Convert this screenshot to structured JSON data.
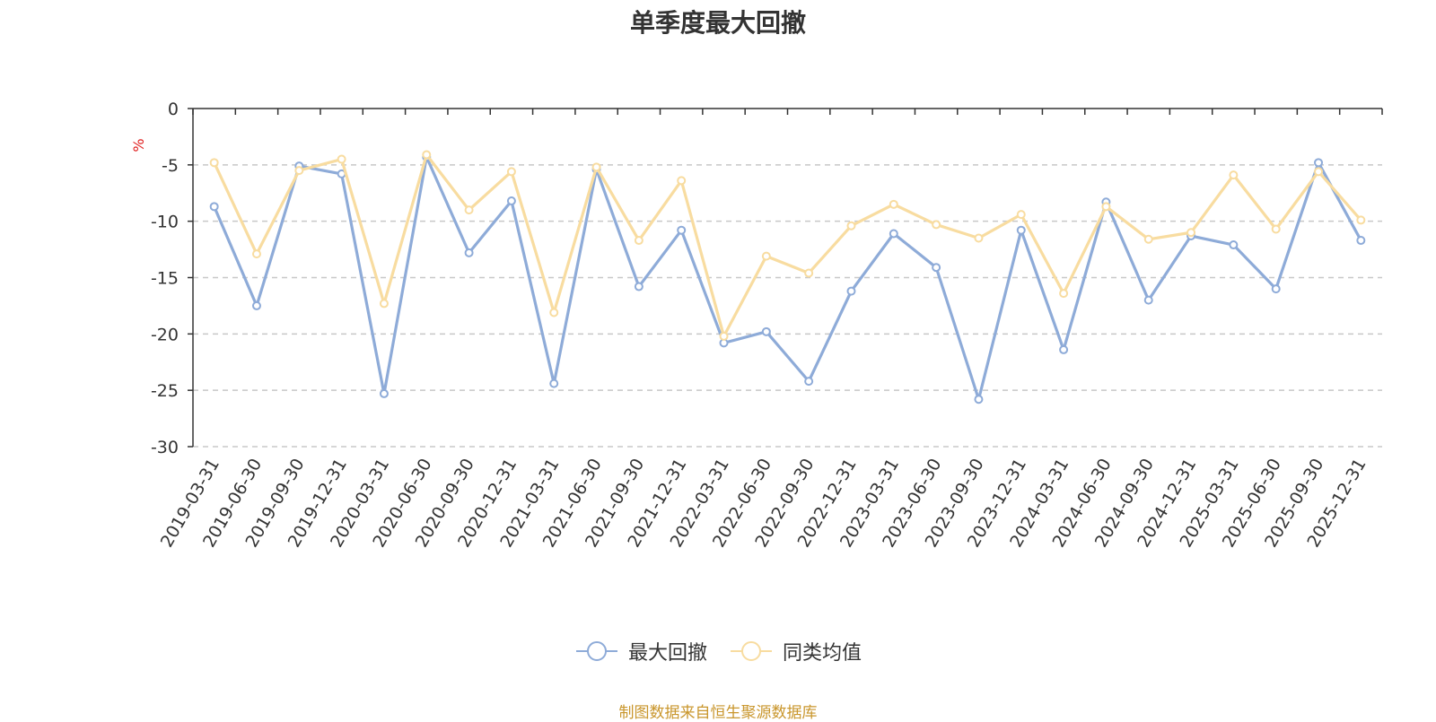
{
  "chart_data": {
    "type": "line",
    "title": "单季度最大回撤",
    "ylabel": "%",
    "ylim": [
      -30,
      0
    ],
    "yticks": [
      0,
      -5,
      -10,
      -15,
      -20,
      -25,
      -30
    ],
    "categories": [
      "2019-03-31",
      "2019-06-30",
      "2019-09-30",
      "2019-12-31",
      "2020-03-31",
      "2020-06-30",
      "2020-09-30",
      "2020-12-31",
      "2021-03-31",
      "2021-06-30",
      "2021-09-30",
      "2021-12-31",
      "2022-03-31",
      "2022-06-30",
      "2022-09-30",
      "2022-12-31",
      "2023-03-31",
      "2023-06-30",
      "2023-09-30",
      "2023-12-31",
      "2024-03-31",
      "2024-06-30",
      "2024-09-30",
      "2024-12-31",
      "2025-03-31",
      "2025-06-30",
      "2025-09-30",
      "2025-12-31"
    ],
    "series": [
      {
        "name": "最大回撤",
        "color": "#8eabd8",
        "values": [
          -8.7,
          -17.5,
          -5.1,
          -5.8,
          -25.3,
          -4.3,
          -12.8,
          -8.2,
          -24.4,
          -5.4,
          -15.8,
          -10.8,
          -20.8,
          -19.8,
          -24.2,
          -16.2,
          -11.1,
          -14.1,
          -25.8,
          -10.8,
          -21.4,
          -8.3,
          -17.0,
          -11.3,
          -12.1,
          -16.0,
          -4.8,
          -11.7
        ]
      },
      {
        "name": "同类均值",
        "color": "#f8dca0",
        "values": [
          -4.8,
          -12.9,
          -5.5,
          -4.5,
          -17.3,
          -4.1,
          -9.0,
          -5.6,
          -18.1,
          -5.2,
          -11.7,
          -6.4,
          -20.2,
          -13.1,
          -14.6,
          -10.4,
          -8.5,
          -10.3,
          -11.5,
          -9.4,
          -16.4,
          -8.7,
          -11.6,
          -11.0,
          -5.9,
          -10.7,
          -5.6,
          -9.9
        ]
      }
    ],
    "grid": "dashed horizontal",
    "legend_position": "bottom-center"
  },
  "source_text": "制图数据来自恒生聚源数据库"
}
